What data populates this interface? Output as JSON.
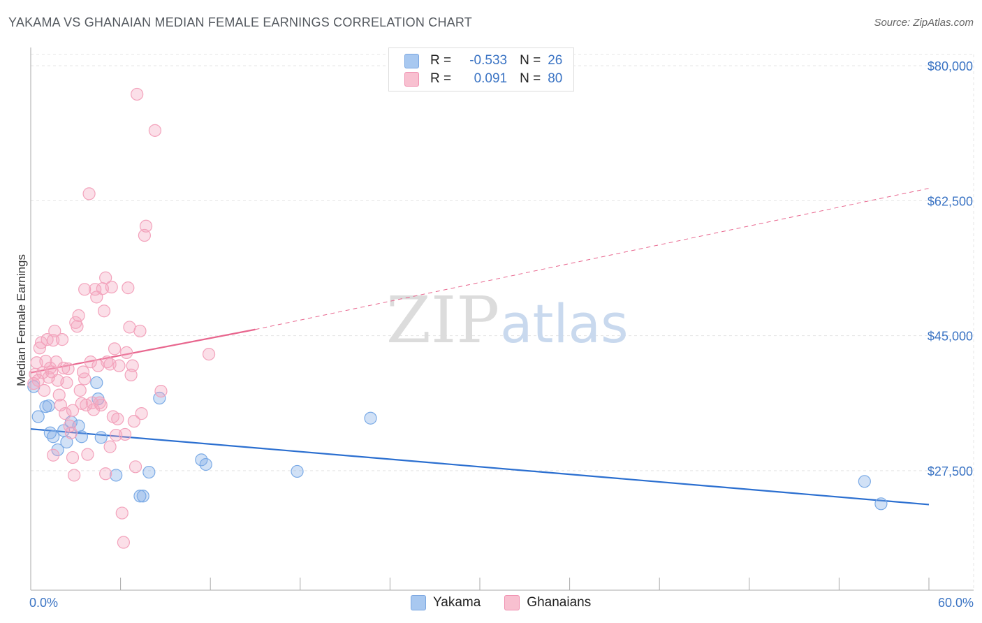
{
  "header": {
    "title": "YAKAMA VS GHANAIAN MEDIAN FEMALE EARNINGS CORRELATION CHART",
    "source": "Source: ZipAtlas.com"
  },
  "watermark": {
    "zip": "ZIP",
    "atlas": "atlas"
  },
  "legend": {
    "rows": [
      {
        "r_label": "R =",
        "r_value": "-0.533",
        "n_label": "N =",
        "n_value": "26",
        "color": "#a8c8f0",
        "border": "#7aa6e0"
      },
      {
        "r_label": "R =",
        "r_value": "0.091",
        "n_label": "N =",
        "n_value": "80",
        "color": "#f8c0d0",
        "border": "#f090b0"
      }
    ]
  },
  "bottom_legend": {
    "items": [
      {
        "label": "Yakama",
        "color": "#a8c8f0",
        "border": "#7aa6e0"
      },
      {
        "label": "Ghanaians",
        "color": "#f8c0d0",
        "border": "#f090b0"
      }
    ]
  },
  "chart_data": {
    "type": "scatter",
    "title": "YAKAMA VS GHANAIAN MEDIAN FEMALE EARNINGS CORRELATION CHART",
    "xlabel": "",
    "ylabel": "Median Female Earnings",
    "xlim": [
      0,
      60
    ],
    "ylim": [
      12000,
      82000
    ],
    "x_tick_labels": [
      "0.0%",
      "60.0%"
    ],
    "y_ticks": [
      27500,
      45000,
      62500,
      80000
    ],
    "y_tick_labels": [
      "$27,500",
      "$45,000",
      "$62,500",
      "$80,000"
    ],
    "series": [
      {
        "name": "Yakama",
        "color": "#7aaae6",
        "line_color": "#2b6fd0",
        "trend": {
          "x0": 0,
          "y0": 32900,
          "x1": 60,
          "y1": 23100
        },
        "points": [
          [
            0.2,
            38400
          ],
          [
            0.5,
            34500
          ],
          [
            1.0,
            35800
          ],
          [
            1.2,
            35900
          ],
          [
            1.3,
            32400
          ],
          [
            1.5,
            31900
          ],
          [
            1.8,
            30200
          ],
          [
            2.2,
            32700
          ],
          [
            2.4,
            31200
          ],
          [
            2.7,
            33800
          ],
          [
            3.2,
            33300
          ],
          [
            3.4,
            31900
          ],
          [
            4.4,
            38900
          ],
          [
            4.5,
            36800
          ],
          [
            4.7,
            31800
          ],
          [
            5.7,
            26900
          ],
          [
            7.3,
            24200
          ],
          [
            7.5,
            24200
          ],
          [
            7.9,
            27300
          ],
          [
            8.6,
            36900
          ],
          [
            11.4,
            28900
          ],
          [
            11.7,
            28300
          ],
          [
            17.8,
            27400
          ],
          [
            22.7,
            34300
          ],
          [
            55.7,
            26100
          ],
          [
            56.8,
            23200
          ]
        ]
      },
      {
        "name": "Ghanaians",
        "color": "#f3a3bc",
        "line_color": "#e8668e",
        "trend": {
          "x0": 0,
          "y0": 40200,
          "x1": 15,
          "y1": 45800,
          "x_dash_end": 60,
          "y_dash_end": 64100
        },
        "points": [
          [
            0.2,
            38800
          ],
          [
            0.3,
            40000
          ],
          [
            0.4,
            41500
          ],
          [
            0.5,
            39200
          ],
          [
            0.6,
            43400
          ],
          [
            0.7,
            44100
          ],
          [
            0.8,
            40200
          ],
          [
            0.9,
            37900
          ],
          [
            1.0,
            41700
          ],
          [
            1.1,
            44500
          ],
          [
            1.2,
            39600
          ],
          [
            1.3,
            40800
          ],
          [
            1.4,
            40300
          ],
          [
            1.5,
            44400
          ],
          [
            1.5,
            29500
          ],
          [
            1.6,
            45600
          ],
          [
            1.7,
            41600
          ],
          [
            1.8,
            39200
          ],
          [
            1.9,
            37300
          ],
          [
            2.0,
            36000
          ],
          [
            2.1,
            44500
          ],
          [
            2.2,
            40800
          ],
          [
            2.3,
            34900
          ],
          [
            2.4,
            38900
          ],
          [
            2.5,
            40700
          ],
          [
            2.6,
            33300
          ],
          [
            2.7,
            32400
          ],
          [
            2.8,
            35300
          ],
          [
            2.8,
            29200
          ],
          [
            2.9,
            26900
          ],
          [
            3.0,
            46700
          ],
          [
            3.1,
            46200
          ],
          [
            3.2,
            47600
          ],
          [
            3.3,
            37900
          ],
          [
            3.4,
            36200
          ],
          [
            3.5,
            40300
          ],
          [
            3.6,
            39400
          ],
          [
            3.7,
            36000
          ],
          [
            3.8,
            29600
          ],
          [
            3.9,
            63400
          ],
          [
            4.0,
            41600
          ],
          [
            4.1,
            36300
          ],
          [
            4.2,
            35400
          ],
          [
            4.3,
            51000
          ],
          [
            4.4,
            50000
          ],
          [
            4.5,
            41100
          ],
          [
            4.7,
            36000
          ],
          [
            4.8,
            51100
          ],
          [
            4.9,
            48200
          ],
          [
            5.0,
            52500
          ],
          [
            5.0,
            27100
          ],
          [
            5.1,
            41600
          ],
          [
            5.3,
            41300
          ],
          [
            5.3,
            30600
          ],
          [
            5.4,
            51300
          ],
          [
            5.5,
            34500
          ],
          [
            5.6,
            43300
          ],
          [
            5.7,
            32100
          ],
          [
            5.8,
            34200
          ],
          [
            5.9,
            41100
          ],
          [
            6.1,
            22000
          ],
          [
            6.2,
            18200
          ],
          [
            6.3,
            32200
          ],
          [
            6.4,
            42800
          ],
          [
            6.5,
            51200
          ],
          [
            6.6,
            46100
          ],
          [
            6.7,
            39900
          ],
          [
            6.8,
            41100
          ],
          [
            6.9,
            33900
          ],
          [
            7.0,
            28000
          ],
          [
            7.1,
            76300
          ],
          [
            7.3,
            45600
          ],
          [
            7.4,
            34900
          ],
          [
            7.6,
            58000
          ],
          [
            7.7,
            59200
          ],
          [
            8.3,
            71600
          ],
          [
            8.7,
            37800
          ],
          [
            11.9,
            42600
          ],
          [
            3.6,
            51000
          ],
          [
            4.6,
            36300
          ]
        ]
      }
    ]
  }
}
